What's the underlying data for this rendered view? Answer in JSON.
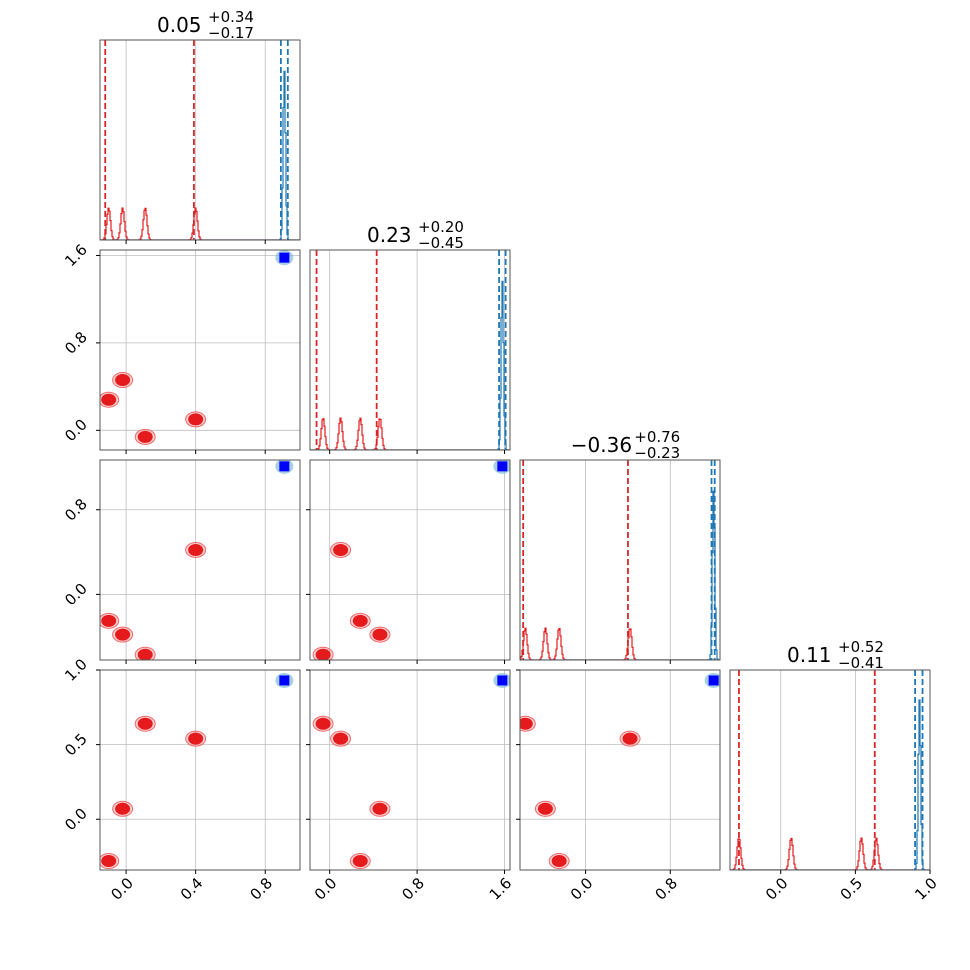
{
  "chart_data": {
    "type": "corner",
    "parameters": [
      "p0",
      "p1",
      "p2",
      "p3"
    ],
    "titles": [
      {
        "value": "0.05",
        "plus": "+0.34",
        "minus": "−0.17"
      },
      {
        "value": "0.23",
        "plus": "+0.20",
        "minus": "−0.45"
      },
      {
        "value": "−0.36",
        "plus": "+0.76",
        "minus": "−0.23"
      },
      {
        "value": "0.11",
        "plus": "+0.52",
        "minus": "−0.41"
      }
    ],
    "ranges": [
      [
        -0.15,
        1.0
      ],
      [
        -0.18,
        1.65
      ],
      [
        -0.62,
        1.27
      ],
      [
        -0.34,
        1.0
      ]
    ],
    "ticks": [
      {
        "values": [
          0.0,
          0.4,
          0.8
        ],
        "labels": [
          "0.0",
          "0.4",
          "0.8"
        ]
      },
      {
        "values": [
          0.0,
          0.8,
          1.6
        ],
        "labels": [
          "0.0",
          "0.8",
          "1.6"
        ]
      },
      {
        "values": [
          0.0,
          0.8
        ],
        "labels": [
          "0.0",
          "0.8"
        ]
      },
      {
        "values": [
          0.0,
          0.5,
          1.0
        ],
        "labels": [
          "0.0",
          "0.5",
          "1.0"
        ]
      }
    ],
    "grid": true,
    "colors": {
      "red": "#e41a1c",
      "red_dashed": "#d62728",
      "blue": "#1f77b4",
      "blue_points": "#0000ff"
    },
    "series": [
      {
        "color": "red",
        "modes": [
          {
            "p0": -0.1,
            "p1": 0.28,
            "p2": -0.25,
            "p3": -0.28
          },
          {
            "p0": -0.02,
            "p1": 0.46,
            "p2": -0.38,
            "p3": 0.07
          },
          {
            "p0": 0.11,
            "p1": -0.06,
            "p2": -0.57,
            "p3": 0.64
          },
          {
            "p0": 0.4,
            "p1": 0.1,
            "p2": 0.42,
            "p3": 0.54
          }
        ],
        "quantiles": [
          [
            -0.12,
            0.39
          ],
          [
            -0.12,
            0.43
          ],
          [
            -0.59,
            0.4
          ],
          [
            -0.28,
            0.63
          ]
        ]
      },
      {
        "color": "blue",
        "modes": [
          {
            "p0": 0.91,
            "p1": 1.58,
            "p2": 1.21,
            "p3": 0.93
          }
        ],
        "quantiles": [
          [
            0.89,
            0.93
          ],
          [
            1.55,
            1.61
          ],
          [
            1.19,
            1.22
          ],
          [
            0.9,
            0.95
          ]
        ]
      }
    ]
  }
}
